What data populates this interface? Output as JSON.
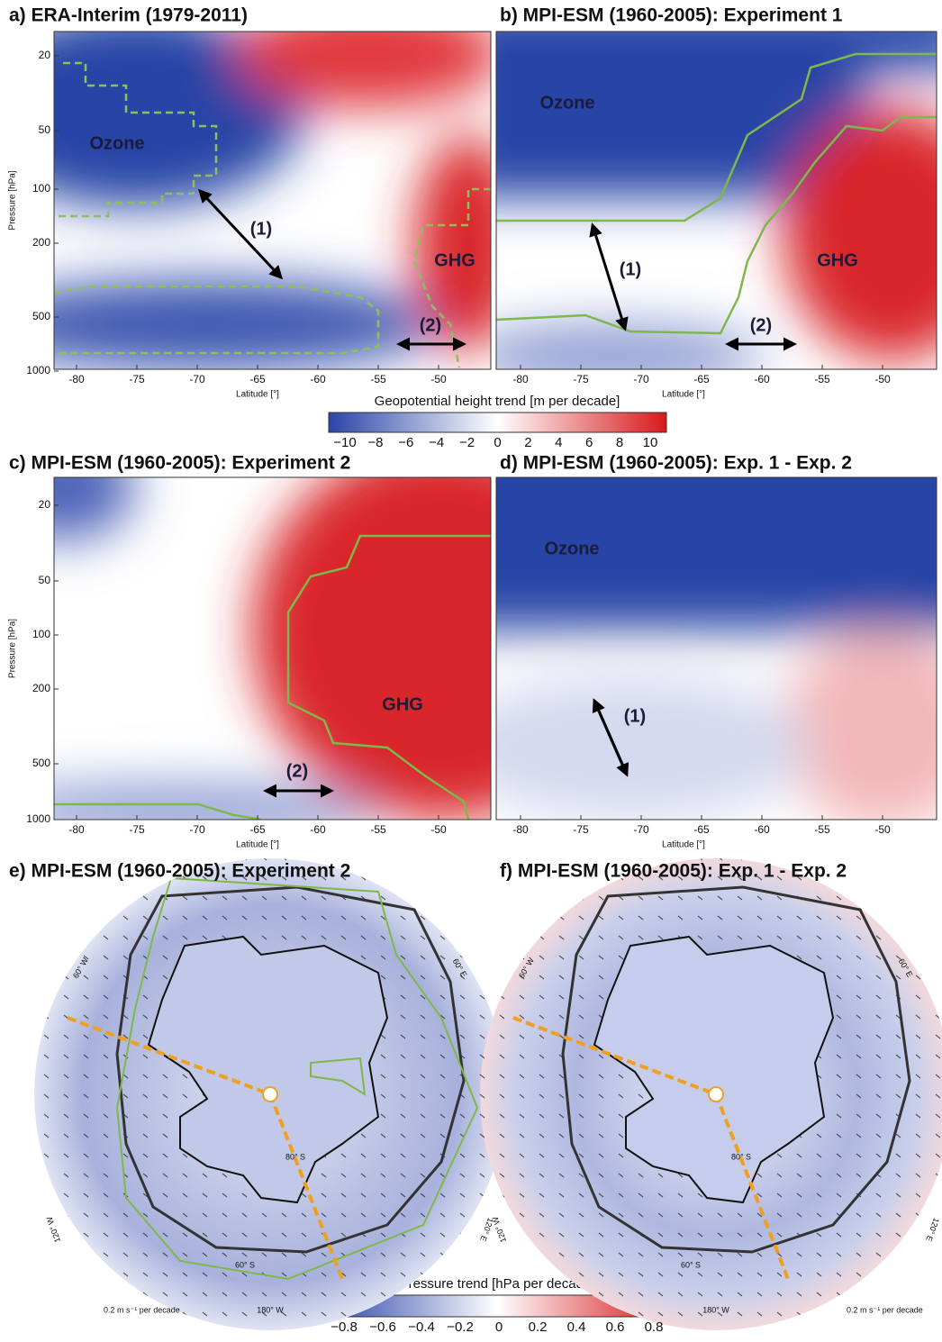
{
  "panels": [
    {
      "title": "a) ERA-Interim (1979-2011)",
      "y_label": "Pressure [hPa]",
      "x_label": "Latitude [°]",
      "xticks": [
        "-80",
        "-75",
        "-70",
        "-65",
        "-60",
        "-55",
        "-50"
      ],
      "yticks": [
        "20",
        "50",
        "100",
        "200",
        "500",
        "1000"
      ],
      "annotations": [
        "Ozone",
        "(1)",
        "GHG",
        "(2)"
      ]
    },
    {
      "title": "b) MPI-ESM (1960-2005): Experiment 1",
      "x_label": "Latitude [°]",
      "xticks": [
        "-80",
        "-75",
        "-70",
        "-65",
        "-60",
        "-55",
        "-50"
      ],
      "annotations": [
        "Ozone",
        "(1)",
        "GHG",
        "(2)"
      ]
    },
    {
      "title": "c) MPI-ESM (1960-2005): Experiment 2",
      "y_label": "Pressure [hPa]",
      "x_label": "Latitude [°]",
      "xticks": [
        "-80",
        "-75",
        "-70",
        "-65",
        "-60",
        "-55",
        "-50"
      ],
      "yticks": [
        "20",
        "50",
        "100",
        "200",
        "500",
        "1000"
      ],
      "annotations": [
        "GHG",
        "(2)"
      ]
    },
    {
      "title": "d) MPI-ESM (1960-2005): Exp. 1 - Exp. 2",
      "x_label": "Latitude [°]",
      "xticks": [
        "-80",
        "-75",
        "-70",
        "-65",
        "-60",
        "-55",
        "-50"
      ],
      "annotations": [
        "Ozone",
        "(1)"
      ]
    }
  ],
  "colorbars": [
    {
      "label": "Geopotential height trend [m per decade]",
      "ticks": [
        "−10",
        "−8",
        "−6",
        "−4",
        "−2",
        "0",
        "2",
        "4",
        "6",
        "8",
        "10"
      ]
    },
    {
      "label": "Pressure trend [hPa per decade]",
      "ticks": [
        "−0.8",
        "−0.6",
        "−0.4",
        "−0.2",
        "0",
        "0.2",
        "0.4",
        "0.6",
        "0.8"
      ]
    }
  ],
  "maps": [
    {
      "title": "e) MPI-ESM (1960-2005): Experiment 2",
      "labels": [
        "60° W",
        "60° E",
        "120° W",
        "120° E",
        "180° W",
        "80° S",
        "60° S"
      ],
      "scale": "0.2 m s⁻¹ per decade"
    },
    {
      "title": "f) MPI-ESM (1960-2005): Exp. 1 - Exp. 2",
      "labels": [
        "60° W",
        "60° E",
        "120° W",
        "120° E",
        "180° W",
        "80° S",
        "60° S"
      ],
      "scale": "0.2 m s⁻¹ per decade"
    }
  ]
}
